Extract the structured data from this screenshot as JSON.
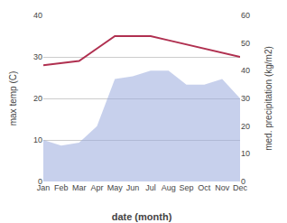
{
  "chart_data": {
    "type": "line",
    "categories": [
      "Jan",
      "Feb",
      "Mar",
      "Apr",
      "May",
      "Jun",
      "Jul",
      "Aug",
      "Sep",
      "Oct",
      "Nov",
      "Dec"
    ],
    "series": [
      {
        "type": "line",
        "color": "#b03050",
        "values": [
          28,
          28.5,
          29,
          32,
          35,
          35,
          35,
          34,
          33,
          32,
          31,
          30
        ]
      },
      {
        "type": "area",
        "color": "#99aadd",
        "axis": "y2",
        "values": [
          15,
          13,
          14,
          20,
          37,
          38,
          40,
          40,
          35,
          35,
          37,
          30
        ]
      }
    ],
    "xlabel": "date (month)",
    "ylabel": "max temp (C)",
    "y2label": "med. precipitation (kg/m2)",
    "ylim": [
      0,
      40
    ],
    "yticks": [
      0,
      10,
      20,
      30,
      40
    ],
    "y2lim": [
      0,
      60
    ],
    "y2ticks": [
      0,
      10,
      20,
      30,
      40,
      50,
      60
    ],
    "grid": true
  }
}
